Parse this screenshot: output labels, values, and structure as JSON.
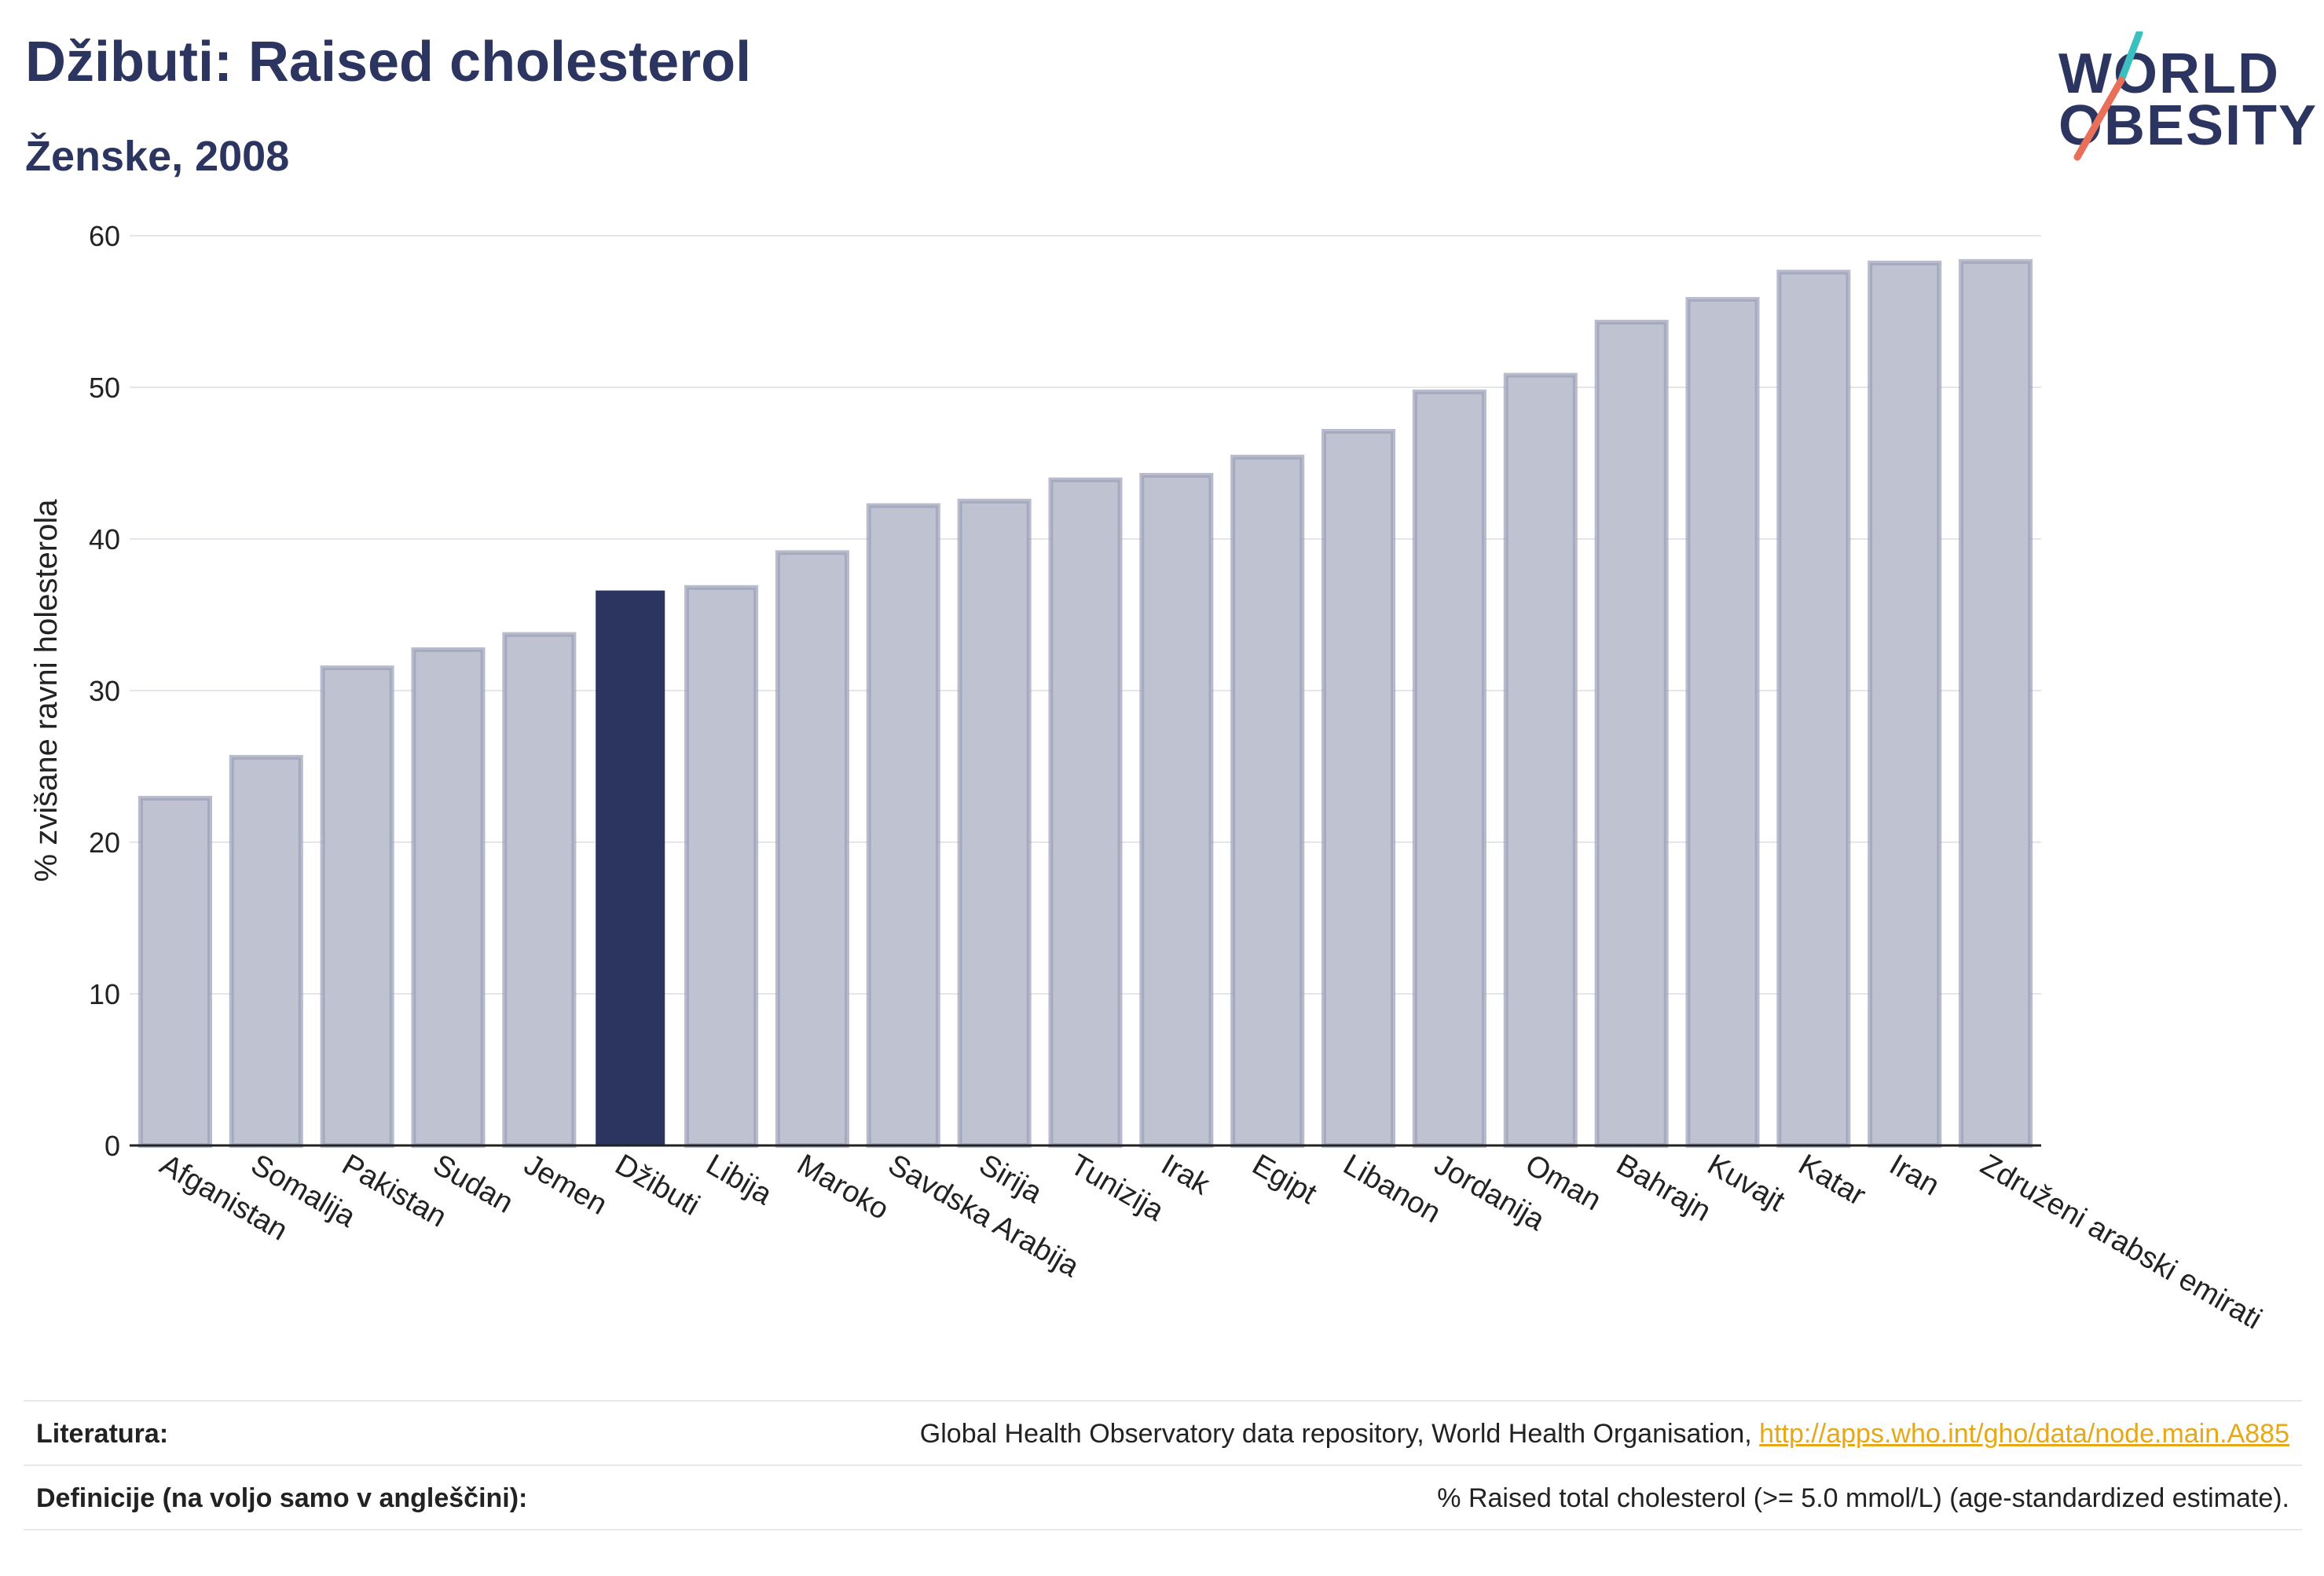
{
  "title": "Džibuti: Raised cholesterol",
  "subtitle": "Ženske, 2008",
  "logo": {
    "line1": "WORLD",
    "line2": "OBESITY"
  },
  "footer": {
    "source_label": "Literatura:",
    "source_text": "Global Health Observatory data repository, World Health Organisation, ",
    "source_link": "http://apps.who.int/gho/data/node.main.A885",
    "definition_label": "Definicije (na voljo samo v angleščini):",
    "definition_text": "% Raised total cholesterol (>= 5.0 mmol/L) (age-standardized estimate)."
  },
  "colors": {
    "highlight": "#2b3560",
    "bar": "#bfc3d1",
    "bar_border": "#9aa0b8",
    "link": "#e6a817",
    "accent_teal": "#3bbfbf",
    "accent_coral": "#e8705a"
  },
  "chart_data": {
    "type": "bar",
    "ylabel": "% zvišane ravni holesterola",
    "xlabel": "",
    "ylim": [
      0,
      60
    ],
    "yticks": [
      0,
      10,
      20,
      30,
      40,
      50,
      60
    ],
    "grid": true,
    "highlight": "Džibuti",
    "categories": [
      "Afganistan",
      "Somalija",
      "Pakistan",
      "Sudan",
      "Jemen",
      "Džibuti",
      "Libija",
      "Maroko",
      "Savdska Arabija",
      "Sirija",
      "Tunizija",
      "Irak",
      "Egipt",
      "Libanon",
      "Jordanija",
      "Oman",
      "Bahrajn",
      "Kuvajt",
      "Katar",
      "Iran",
      "Združeni arabski emirati"
    ],
    "values": [
      22.9,
      25.6,
      31.5,
      32.7,
      33.7,
      36.6,
      36.8,
      39.1,
      42.2,
      42.5,
      43.9,
      44.2,
      45.4,
      47.1,
      49.7,
      50.8,
      54.3,
      55.8,
      57.6,
      58.2,
      58.3
    ]
  }
}
